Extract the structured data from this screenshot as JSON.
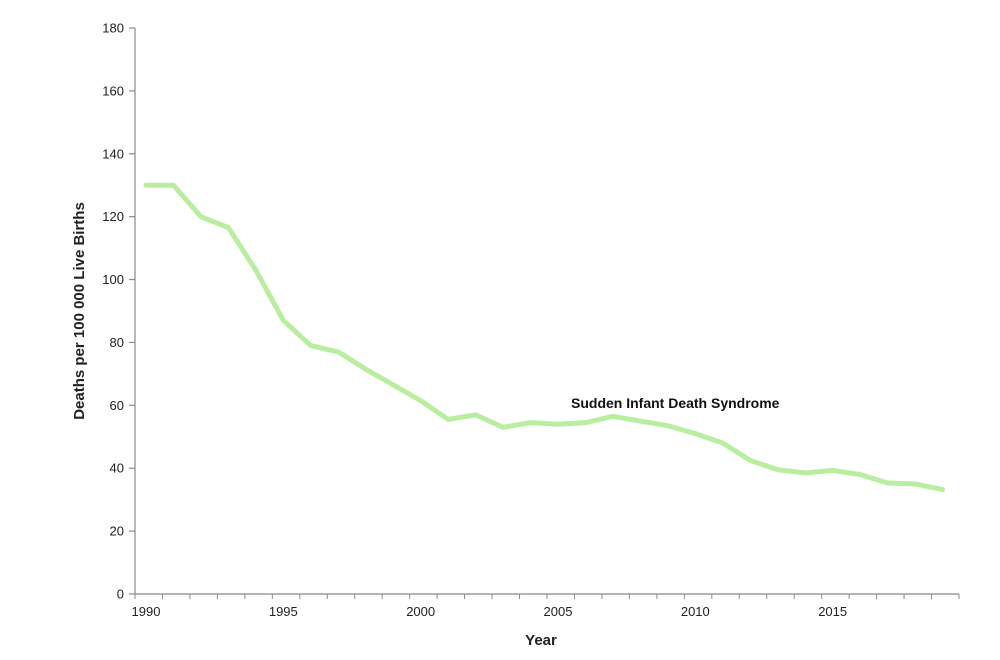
{
  "chart_data": {
    "type": "line",
    "xlabel": "Year",
    "ylabel": "Deaths per 100 000 Live Births",
    "xlim": [
      1989.6,
      2019.6
    ],
    "ylim": [
      0,
      180
    ],
    "x_ticks": [
      1990,
      1995,
      2000,
      2005,
      2010,
      2015
    ],
    "y_ticks": [
      0,
      20,
      40,
      60,
      80,
      100,
      120,
      140,
      160,
      180
    ],
    "grid": false,
    "series": [
      {
        "annotation": "Sudden Infant Death Syndrome",
        "color": "#b9eda0",
        "x": [
          1990,
          1991,
          1992,
          1993,
          1994,
          1995,
          1996,
          1997,
          1998,
          1999,
          2000,
          2001,
          2002,
          2003,
          2004,
          2005,
          2006,
          2007,
          2008,
          2009,
          2010,
          2011,
          2012,
          2013,
          2014,
          2015,
          2016,
          2017,
          2018,
          2019
        ],
        "values": [
          130,
          130,
          120,
          116.5,
          103,
          87,
          79,
          77,
          71.5,
          66.5,
          61.5,
          55.5,
          57,
          53,
          54.5,
          54,
          54.5,
          56.5,
          55,
          53.5,
          51,
          48,
          42.5,
          39.5,
          38.5,
          39.3,
          38,
          35.3,
          35,
          33.2
        ]
      }
    ],
    "axis_color": "#8a8a8a"
  }
}
